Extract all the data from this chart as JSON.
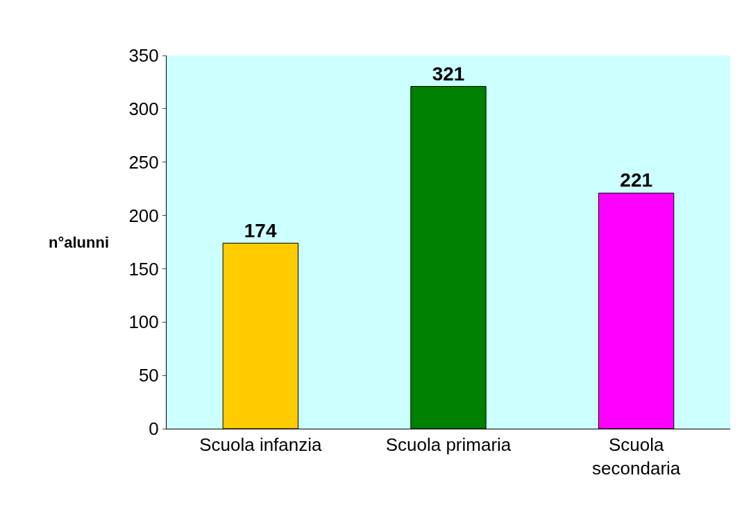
{
  "chart_data": {
    "type": "bar",
    "ylabel": "n°alunni",
    "categories": [
      "Scuola infanzia",
      "Scuola primaria",
      "Scuola secondaria"
    ],
    "values": [
      174,
      321,
      221
    ],
    "colors": [
      "#ffcc00",
      "#008000",
      "#ff00ff"
    ],
    "ylim": [
      0,
      350
    ],
    "yticks": [
      0,
      50,
      100,
      150,
      200,
      250,
      300,
      350
    ],
    "data_labels": true,
    "grid": false
  }
}
